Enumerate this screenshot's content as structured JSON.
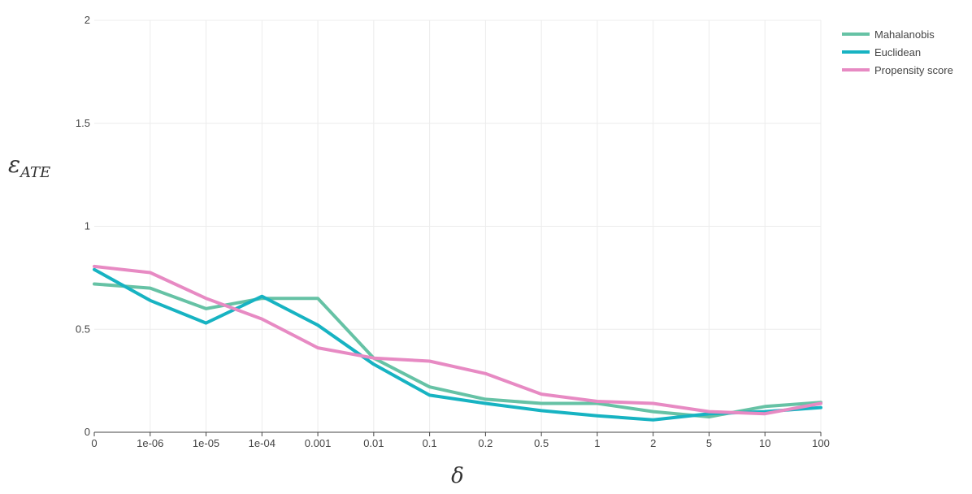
{
  "chart_data": {
    "type": "line",
    "title": "",
    "xlabel": "δ",
    "ylabel": "ε",
    "ylabel_subscript": "ATE",
    "categories": [
      "0",
      "1e-06",
      "1e-05",
      "1e-04",
      "0.001",
      "0.01",
      "0.1",
      "0.2",
      "0.5",
      "1",
      "2",
      "5",
      "10",
      "100"
    ],
    "yticks": [
      "0",
      "0.5",
      "1",
      "1.5",
      "2"
    ],
    "ylim": [
      0,
      2
    ],
    "grid": true,
    "legend_position": "top-right",
    "series": [
      {
        "name": "Mahalanobis",
        "color": "#66c2a5",
        "values": [
          0.72,
          0.7,
          0.6,
          0.65,
          0.65,
          0.36,
          0.22,
          0.16,
          0.14,
          0.14,
          0.1,
          0.075,
          0.125,
          0.145
        ]
      },
      {
        "name": "Euclidean",
        "color": "#17b3c2",
        "values": [
          0.79,
          0.64,
          0.53,
          0.66,
          0.52,
          0.33,
          0.18,
          0.14,
          0.105,
          0.08,
          0.06,
          0.09,
          0.1,
          0.12
        ]
      },
      {
        "name": "Propensity score",
        "color": "#e78ac3",
        "values": [
          0.805,
          0.775,
          0.65,
          0.55,
          0.41,
          0.36,
          0.345,
          0.285,
          0.185,
          0.15,
          0.14,
          0.1,
          0.09,
          0.14
        ]
      }
    ]
  }
}
